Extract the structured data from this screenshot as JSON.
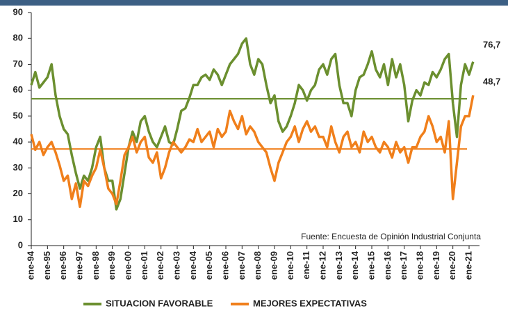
{
  "chart_data": {
    "type": "line",
    "source": "Fuente: Encuesta de Opinión Industrial Conjunta",
    "annotations": [
      "76,7",
      "48,7"
    ],
    "categories": [
      "ene-94",
      null,
      null,
      null,
      "ene-95",
      null,
      null,
      null,
      "ene-96",
      null,
      null,
      null,
      "ene-97",
      null,
      null,
      null,
      "ene-98",
      null,
      null,
      null,
      "ene-99",
      null,
      null,
      null,
      "ene-00",
      null,
      null,
      null,
      "ene-01",
      null,
      null,
      null,
      "ene-02",
      null,
      null,
      null,
      "ene-03",
      null,
      null,
      null,
      "ene-04",
      null,
      null,
      null,
      "ene-05",
      null,
      null,
      null,
      "ene-06",
      null,
      null,
      null,
      "ene-07",
      null,
      null,
      null,
      "ene-08",
      null,
      null,
      null,
      "ene-09",
      null,
      null,
      null,
      "ene-10",
      null,
      null,
      null,
      "ene-11",
      null,
      null,
      null,
      "ene-12",
      null,
      null,
      null,
      "ene-13",
      null,
      null,
      null,
      "ene-14",
      null,
      null,
      null,
      "ene-15",
      null,
      null,
      null,
      "ene-16",
      null,
      null,
      null,
      "ene-17",
      null,
      null,
      null,
      "ene-18",
      null,
      null,
      null,
      "ene-19",
      null,
      null,
      null,
      "ene-20",
      null,
      null,
      null,
      "ene-21",
      null
    ],
    "series": [
      {
        "name": "SITUACION FAVORABLE",
        "color": "#6b8f2f",
        "values": [
          62,
          67,
          61,
          63,
          65,
          70,
          58,
          50,
          45,
          43,
          35,
          28,
          22,
          27,
          25,
          30,
          38,
          42,
          30,
          25,
          25,
          14,
          18,
          28,
          38,
          44,
          40,
          48,
          50,
          44,
          40,
          38,
          42,
          46,
          40,
          39,
          45,
          52,
          53,
          57,
          62,
          62,
          65,
          66,
          64,
          68,
          66,
          62,
          66,
          70,
          72,
          74,
          78,
          80,
          70,
          66,
          72,
          70,
          62,
          55,
          58,
          48,
          44,
          46,
          50,
          55,
          62,
          60,
          56,
          60,
          62,
          68,
          70,
          66,
          72,
          74,
          62,
          55,
          55,
          50,
          60,
          65,
          66,
          70,
          75,
          68,
          65,
          70,
          62,
          72,
          65,
          70,
          62,
          48,
          56,
          60,
          58,
          63,
          62,
          67,
          65,
          68,
          72,
          74,
          55,
          42,
          62,
          70,
          66,
          71
        ]
      },
      {
        "name": "MEJORES EXPECTATIVAS",
        "color": "#f07f1b",
        "values": [
          43,
          37,
          40,
          35,
          38,
          40,
          36,
          31,
          25,
          27,
          18,
          24,
          15,
          25,
          23,
          27,
          30,
          37,
          30,
          22,
          20,
          16,
          25,
          35,
          38,
          42,
          36,
          40,
          42,
          34,
          32,
          36,
          26,
          30,
          36,
          40,
          38,
          36,
          38,
          41,
          40,
          45,
          40,
          42,
          44,
          38,
          45,
          42,
          44,
          52,
          48,
          45,
          50,
          43,
          46,
          44,
          40,
          38,
          36,
          30,
          25,
          32,
          36,
          40,
          42,
          46,
          40,
          45,
          48,
          44,
          46,
          42,
          42,
          38,
          46,
          40,
          36,
          42,
          44,
          38,
          40,
          36,
          44,
          40,
          42,
          38,
          36,
          40,
          38,
          34,
          40,
          36,
          38,
          32,
          38,
          38,
          42,
          44,
          50,
          46,
          40,
          42,
          36,
          48,
          18,
          32,
          46,
          50,
          50,
          58
        ]
      }
    ],
    "reference_lines": [
      {
        "value": 56.7,
        "color": "#6b8f2f"
      },
      {
        "value": 37.3,
        "color": "#f07f1b"
      }
    ],
    "ylim": [
      0,
      90
    ],
    "yticks": [
      0,
      10,
      20,
      30,
      40,
      50,
      60,
      70,
      80,
      90
    ],
    "grid": false
  }
}
